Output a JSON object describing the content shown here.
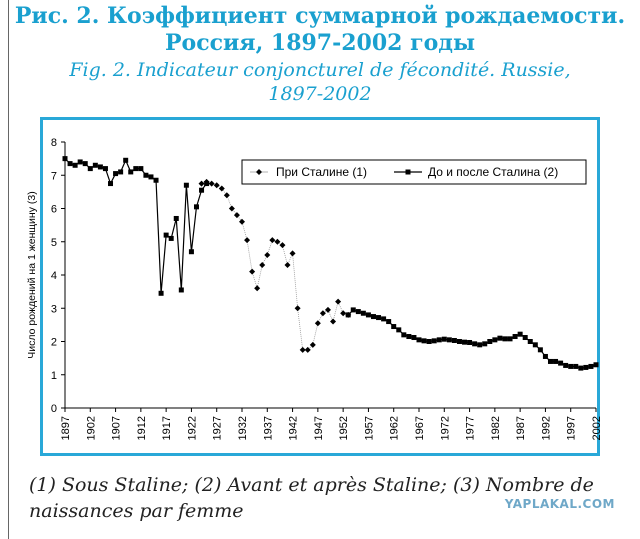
{
  "header": {
    "title_ru_line1": "Рис. 2. Коэффициент суммарной рождаемости.",
    "title_ru_line2": "Россия, 1897-2002 годы",
    "title_fr_line1": "Fig. 2. Indicateur conjoncturel de fécondité. Russie,",
    "title_fr_line2": "1897-2002"
  },
  "footnote": {
    "line1": "(1) Sous Staline; (2) Avant et après Staline; (3) Nombre de",
    "line2": "naissances par femme"
  },
  "watermark": "YAPLAKAL.COM",
  "chart_data": {
    "type": "line",
    "ylabel": "Число рождений на 1 женщину (3)",
    "xlabel": "",
    "xlim": [
      1897,
      2002
    ],
    "ylim": [
      0,
      8
    ],
    "x_ticks": [
      1897,
      1902,
      1907,
      1912,
      1917,
      1922,
      1927,
      1932,
      1937,
      1942,
      1947,
      1952,
      1957,
      1962,
      1967,
      1972,
      1977,
      1982,
      1987,
      1992,
      1997,
      2002
    ],
    "y_ticks": [
      0,
      1,
      2,
      3,
      4,
      5,
      6,
      7,
      8
    ],
    "legend_position": "top-right",
    "grid": false,
    "series": [
      {
        "name": "При Сталине (1)",
        "marker": "diamond",
        "points": [
          [
            1924,
            6.75
          ],
          [
            1925,
            6.8
          ],
          [
            1926,
            6.75
          ],
          [
            1927,
            6.7
          ],
          [
            1928,
            6.6
          ],
          [
            1929,
            6.4
          ],
          [
            1930,
            6.0
          ],
          [
            1931,
            5.8
          ],
          [
            1932,
            5.6
          ],
          [
            1933,
            5.05
          ],
          [
            1934,
            4.1
          ],
          [
            1935,
            3.6
          ],
          [
            1936,
            4.3
          ],
          [
            1937,
            4.6
          ],
          [
            1938,
            5.05
          ],
          [
            1939,
            5.0
          ],
          [
            1940,
            4.9
          ],
          [
            1941,
            4.3
          ],
          [
            1942,
            4.65
          ],
          [
            1943,
            3.0
          ],
          [
            1944,
            1.75
          ],
          [
            1945,
            1.75
          ],
          [
            1946,
            1.9
          ],
          [
            1947,
            2.55
          ],
          [
            1948,
            2.85
          ],
          [
            1949,
            2.95
          ],
          [
            1950,
            2.6
          ],
          [
            1951,
            3.2
          ],
          [
            1952,
            2.85
          ],
          [
            1953,
            2.8
          ]
        ]
      },
      {
        "name": "До и после Сталина (2)",
        "marker": "square",
        "points": [
          [
            1897,
            7.5
          ],
          [
            1898,
            7.35
          ],
          [
            1899,
            7.3
          ],
          [
            1900,
            7.4
          ],
          [
            1901,
            7.35
          ],
          [
            1902,
            7.2
          ],
          [
            1903,
            7.3
          ],
          [
            1904,
            7.25
          ],
          [
            1905,
            7.2
          ],
          [
            1906,
            6.75
          ],
          [
            1907,
            7.05
          ],
          [
            1908,
            7.1
          ],
          [
            1909,
            7.45
          ],
          [
            1910,
            7.1
          ],
          [
            1911,
            7.2
          ],
          [
            1912,
            7.2
          ],
          [
            1913,
            7.0
          ],
          [
            1914,
            6.95
          ],
          [
            1915,
            6.85
          ],
          [
            1916,
            3.45
          ],
          [
            1917,
            5.2
          ],
          [
            1918,
            5.1
          ],
          [
            1919,
            5.7
          ],
          [
            1920,
            3.55
          ],
          [
            1921,
            6.7
          ],
          [
            1922,
            4.7
          ],
          [
            1923,
            6.05
          ],
          [
            1924,
            6.55
          ],
          [
            1925,
            6.75
          ],
          [
            1953,
            2.8
          ],
          [
            1954,
            2.95
          ],
          [
            1955,
            2.9
          ],
          [
            1956,
            2.85
          ],
          [
            1957,
            2.8
          ],
          [
            1958,
            2.75
          ],
          [
            1959,
            2.72
          ],
          [
            1960,
            2.68
          ],
          [
            1961,
            2.6
          ],
          [
            1962,
            2.45
          ],
          [
            1963,
            2.35
          ],
          [
            1964,
            2.2
          ],
          [
            1965,
            2.15
          ],
          [
            1966,
            2.12
          ],
          [
            1967,
            2.05
          ],
          [
            1968,
            2.02
          ],
          [
            1969,
            2.0
          ],
          [
            1970,
            2.02
          ],
          [
            1971,
            2.05
          ],
          [
            1972,
            2.07
          ],
          [
            1973,
            2.05
          ],
          [
            1974,
            2.03
          ],
          [
            1975,
            2.0
          ],
          [
            1976,
            1.98
          ],
          [
            1977,
            1.97
          ],
          [
            1978,
            1.93
          ],
          [
            1979,
            1.9
          ],
          [
            1980,
            1.93
          ],
          [
            1981,
            2.0
          ],
          [
            1982,
            2.05
          ],
          [
            1983,
            2.1
          ],
          [
            1984,
            2.08
          ],
          [
            1985,
            2.08
          ],
          [
            1986,
            2.15
          ],
          [
            1987,
            2.22
          ],
          [
            1988,
            2.12
          ],
          [
            1989,
            2.0
          ],
          [
            1990,
            1.9
          ],
          [
            1991,
            1.75
          ],
          [
            1992,
            1.55
          ],
          [
            1993,
            1.4
          ],
          [
            1994,
            1.4
          ],
          [
            1995,
            1.35
          ],
          [
            1996,
            1.28
          ],
          [
            1997,
            1.25
          ],
          [
            1998,
            1.25
          ],
          [
            1999,
            1.2
          ],
          [
            2000,
            1.22
          ],
          [
            2001,
            1.25
          ],
          [
            2002,
            1.3
          ]
        ]
      }
    ]
  }
}
